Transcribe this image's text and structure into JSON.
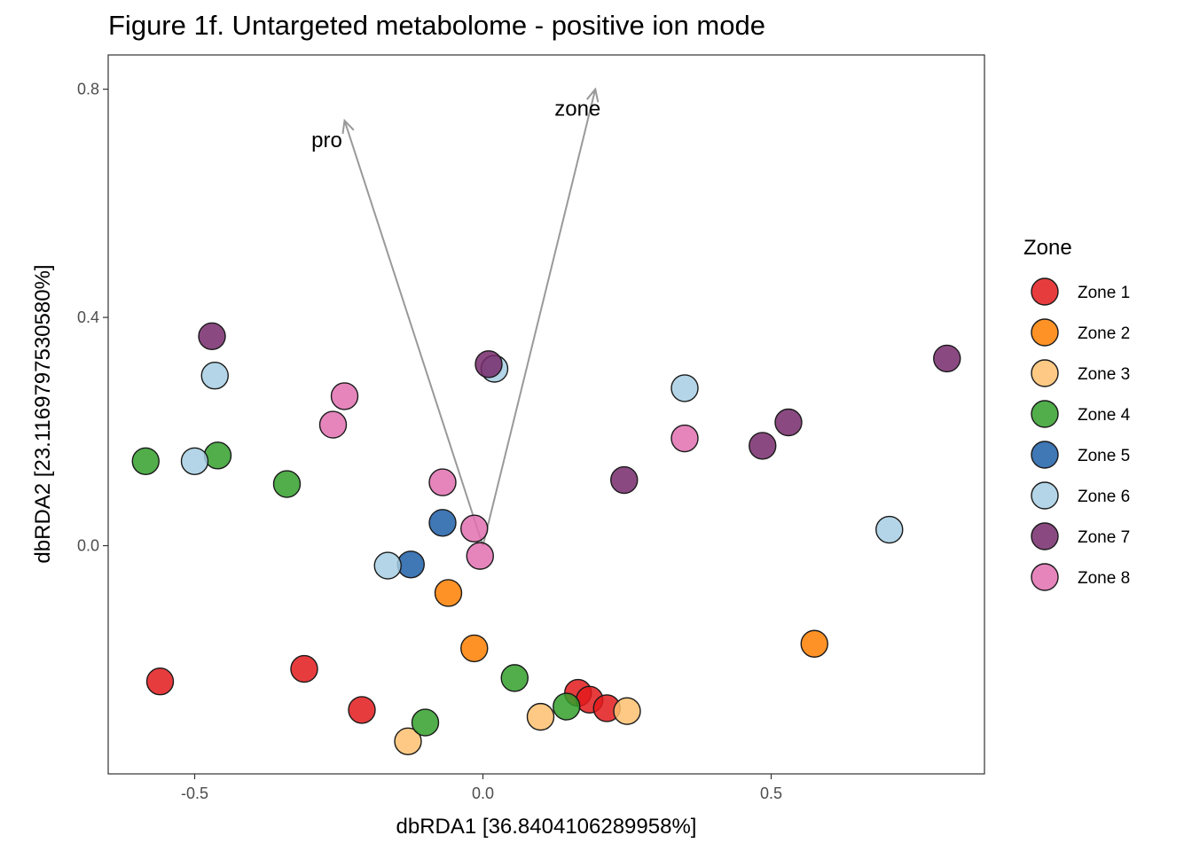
{
  "chart_data": {
    "type": "scatter",
    "title": "Figure 1f. Untargeted metabolome - positive ion mode",
    "xlabel": "dbRDA1 [36.8404106289958%]",
    "ylabel": "dbRDA2 [23.1169797530580%]",
    "xlim": [
      -0.65,
      0.87
    ],
    "ylim": [
      -0.4,
      0.86
    ],
    "x_ticks": [
      {
        "value": -0.5,
        "label": "-0.5"
      },
      {
        "value": 0,
        "label": "0.0"
      },
      {
        "value": 0.5,
        "label": "0.5"
      }
    ],
    "y_ticks": [
      {
        "value": 0,
        "label": "0.0"
      },
      {
        "value": 0.4,
        "label": "0.4"
      },
      {
        "value": 0.8,
        "label": "0.8"
      }
    ],
    "grid": false,
    "legend": {
      "title": "Zone",
      "position": "right"
    },
    "series": [
      {
        "name": "Zone 1",
        "color": "#E31A1C",
        "points": [
          [
            -0.56,
            -0.238
          ],
          [
            -0.31,
            -0.216
          ],
          [
            -0.21,
            -0.288
          ],
          [
            0.165,
            -0.258
          ],
          [
            0.185,
            -0.27
          ],
          [
            0.215,
            -0.285
          ]
        ]
      },
      {
        "name": "Zone 2",
        "color": "#FF7F00",
        "points": [
          [
            -0.06,
            -0.083
          ],
          [
            -0.015,
            -0.18
          ],
          [
            0.575,
            -0.172
          ]
        ]
      },
      {
        "name": "Zone 3",
        "color": "#FDBF6F",
        "points": [
          [
            -0.13,
            -0.343
          ],
          [
            0.1,
            -0.3
          ],
          [
            0.25,
            -0.29
          ]
        ]
      },
      {
        "name": "Zone 4",
        "color": "#33A02C",
        "points": [
          [
            -0.585,
            0.148
          ],
          [
            -0.46,
            0.158
          ],
          [
            -0.34,
            0.108
          ],
          [
            -0.1,
            -0.31
          ],
          [
            0.055,
            -0.232
          ],
          [
            0.145,
            -0.282
          ]
        ]
      },
      {
        "name": "Zone 5",
        "color": "#1F5FA8",
        "points": [
          [
            -0.07,
            0.04
          ],
          [
            -0.125,
            -0.033
          ]
        ]
      },
      {
        "name": "Zone 6",
        "color": "#A6CEE3",
        "points": [
          [
            -0.5,
            0.148
          ],
          [
            -0.465,
            0.298
          ],
          [
            -0.165,
            -0.035
          ],
          [
            0.02,
            0.31
          ],
          [
            0.35,
            0.276
          ],
          [
            0.705,
            0.028
          ]
        ]
      },
      {
        "name": "Zone 7",
        "color": "#762A6B",
        "points": [
          [
            -0.47,
            0.367
          ],
          [
            0.01,
            0.318
          ],
          [
            0.245,
            0.115
          ],
          [
            0.485,
            0.175
          ],
          [
            0.53,
            0.216
          ],
          [
            0.805,
            0.328
          ]
        ]
      },
      {
        "name": "Zone 8",
        "color": "#E070B0",
        "points": [
          [
            -0.24,
            0.262
          ],
          [
            -0.26,
            0.212
          ],
          [
            -0.07,
            0.111
          ],
          [
            -0.015,
            0.03
          ],
          [
            -0.005,
            -0.018
          ],
          [
            0.35,
            0.188
          ]
        ]
      }
    ],
    "vectors": [
      {
        "label": "pro",
        "end": [
          -0.24,
          0.745
        ]
      },
      {
        "label": "zone",
        "end": [
          0.195,
          0.8
        ]
      }
    ]
  }
}
